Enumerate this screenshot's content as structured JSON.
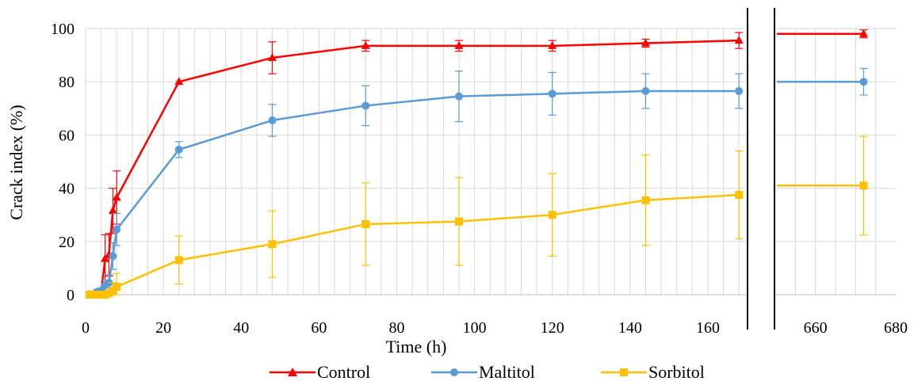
{
  "chart_data": {
    "type": "line",
    "xlabel": "Time (h)",
    "ylabel": "Crack index (%)",
    "ylim": [
      0,
      100
    ],
    "yticks": [
      "0",
      "20",
      "40",
      "60",
      "80",
      "100"
    ],
    "xlim_main": [
      0,
      170
    ],
    "xticks_main": [
      "0",
      "20",
      "40",
      "60",
      "80",
      "100",
      "120",
      "140",
      "160"
    ],
    "xlim_break": [
      650,
      680
    ],
    "xticks_break": [
      "660",
      "680"
    ],
    "grid": true,
    "legend_position": "bottom",
    "series": [
      {
        "name": "Control",
        "color": "#ff0000",
        "marker": "triangle",
        "points": [
          {
            "x": 1,
            "y": 0,
            "err": 0
          },
          {
            "x": 2,
            "y": 0,
            "err": 0
          },
          {
            "x": 3,
            "y": 0.5,
            "err": 1
          },
          {
            "x": 4,
            "y": 1,
            "err": 1.5
          },
          {
            "x": 5,
            "y": 13.5,
            "err": 9
          },
          {
            "x": 6,
            "y": 15,
            "err": 8
          },
          {
            "x": 7,
            "y": 31.5,
            "err": 8.5
          },
          {
            "x": 8,
            "y": 36.5,
            "err": 10
          },
          {
            "x": 24,
            "y": 80,
            "err": 0
          },
          {
            "x": 48,
            "y": 89,
            "err": 6
          },
          {
            "x": 72,
            "y": 93.5,
            "err": 2
          },
          {
            "x": 96,
            "y": 93.5,
            "err": 2
          },
          {
            "x": 120,
            "y": 93.5,
            "err": 2
          },
          {
            "x": 144,
            "y": 94.5,
            "err": 1.5
          },
          {
            "x": 168,
            "y": 95.5,
            "err": 3
          },
          {
            "x": 672,
            "y": 98,
            "err": 1.5
          }
        ]
      },
      {
        "name": "Maltitol",
        "color": "#5b9bd5",
        "marker": "circle",
        "points": [
          {
            "x": 1,
            "y": 0,
            "err": 0
          },
          {
            "x": 2,
            "y": 0,
            "err": 0
          },
          {
            "x": 3,
            "y": 1,
            "err": 1
          },
          {
            "x": 4,
            "y": 1.5,
            "err": 1
          },
          {
            "x": 5,
            "y": 3.5,
            "err": 2
          },
          {
            "x": 6,
            "y": 4.5,
            "err": 3
          },
          {
            "x": 7,
            "y": 14.5,
            "err": 5
          },
          {
            "x": 8,
            "y": 24.5,
            "err": 6
          },
          {
            "x": 24,
            "y": 54.5,
            "err": 3
          },
          {
            "x": 48,
            "y": 65.5,
            "err": 6
          },
          {
            "x": 72,
            "y": 71,
            "err": 7.5
          },
          {
            "x": 96,
            "y": 74.5,
            "err": 9.5
          },
          {
            "x": 120,
            "y": 75.5,
            "err": 8
          },
          {
            "x": 144,
            "y": 76.5,
            "err": 6.5
          },
          {
            "x": 168,
            "y": 76.5,
            "err": 6.5
          },
          {
            "x": 672,
            "y": 80,
            "err": 5
          }
        ]
      },
      {
        "name": "Sorbitol",
        "color": "#ffc000",
        "marker": "square",
        "points": [
          {
            "x": 1,
            "y": 0,
            "err": 0
          },
          {
            "x": 2,
            "y": 0,
            "err": 0
          },
          {
            "x": 3,
            "y": 0,
            "err": 0
          },
          {
            "x": 4,
            "y": 0,
            "err": 0
          },
          {
            "x": 5,
            "y": 0,
            "err": 0
          },
          {
            "x": 6,
            "y": 0.5,
            "err": 1
          },
          {
            "x": 7,
            "y": 1.5,
            "err": 3
          },
          {
            "x": 8,
            "y": 3,
            "err": 5
          },
          {
            "x": 24,
            "y": 13,
            "err": 9
          },
          {
            "x": 48,
            "y": 19,
            "err": 12.5
          },
          {
            "x": 72,
            "y": 26.5,
            "err": 15.5
          },
          {
            "x": 96,
            "y": 27.5,
            "err": 16.5
          },
          {
            "x": 120,
            "y": 30,
            "err": 15.5
          },
          {
            "x": 144,
            "y": 35.5,
            "err": 17
          },
          {
            "x": 168,
            "y": 37.5,
            "err": 16.5
          },
          {
            "x": 672,
            "y": 41,
            "err": 18.5
          }
        ]
      }
    ]
  }
}
